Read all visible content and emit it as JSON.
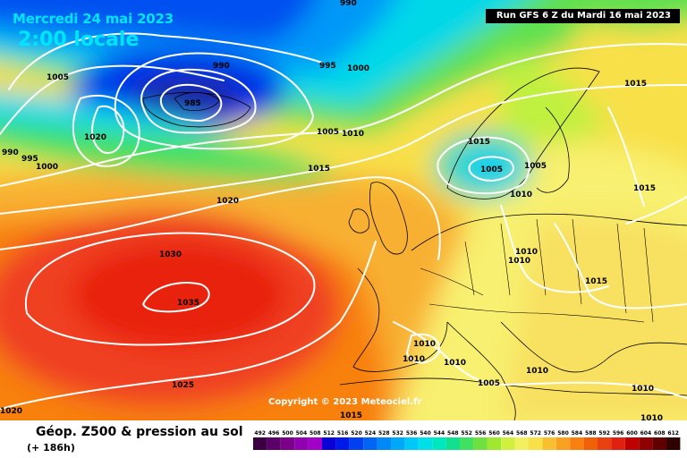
{
  "header": {
    "date": "Mercredi 24 mai 2023",
    "time": "2:00 locale",
    "run": "Run GFS 6 Z du Mardi 16 mai 2023"
  },
  "copyright": "Copyright © 2023 Meteociel.fr",
  "legend": {
    "title": "Géop. Z500 & pression au sol",
    "subtitle": "(+ 186h)",
    "ticks": [
      "492",
      "496",
      "500",
      "504",
      "508",
      "512",
      "516",
      "520",
      "524",
      "528",
      "532",
      "536",
      "540",
      "544",
      "548",
      "552",
      "556",
      "560",
      "564",
      "568",
      "572",
      "576",
      "580",
      "584",
      "588",
      "592",
      "596",
      "600",
      "604",
      "608",
      "612"
    ],
    "colors": [
      "#3a0040",
      "#5a0066",
      "#7a0088",
      "#9000b0",
      "#a000c8",
      "#0a00d8",
      "#0018e8",
      "#0040f0",
      "#0064f4",
      "#0088f8",
      "#00a8f8",
      "#00c8f8",
      "#00e0e8",
      "#00e8c0",
      "#10e090",
      "#40e060",
      "#70e040",
      "#a0e830",
      "#d0f040",
      "#f0f060",
      "#f8e048",
      "#f8c030",
      "#f8a020",
      "#f88010",
      "#f06008",
      "#e84010",
      "#e02010",
      "#c00000",
      "#900000",
      "#600000",
      "#300000"
    ]
  },
  "isobars": [
    {
      "text": "990",
      "color": "#000000"
    },
    {
      "text": "1005"
    },
    {
      "text": "990"
    },
    {
      "text": "995"
    },
    {
      "text": "1000"
    },
    {
      "text": "985"
    },
    {
      "text": "1020"
    },
    {
      "text": "990"
    },
    {
      "text": "995"
    },
    {
      "text": "1000"
    },
    {
      "text": "1005"
    },
    {
      "text": "1010"
    },
    {
      "text": "1015"
    },
    {
      "text": "1020"
    },
    {
      "text": "1015"
    },
    {
      "text": "1005"
    },
    {
      "text": "1005"
    },
    {
      "text": "1010"
    },
    {
      "text": "1015"
    },
    {
      "text": "1015"
    },
    {
      "text": "1010"
    },
    {
      "text": "1010"
    },
    {
      "text": "1015"
    },
    {
      "text": "1030"
    },
    {
      "text": "1035"
    },
    {
      "text": "1025"
    },
    {
      "text": "1020"
    },
    {
      "text": "1010"
    },
    {
      "text": "1010"
    },
    {
      "text": "1010"
    },
    {
      "text": "1005"
    },
    {
      "text": "1010"
    },
    {
      "text": "1010"
    },
    {
      "text": "1015"
    },
    {
      "text": "1010"
    }
  ]
}
